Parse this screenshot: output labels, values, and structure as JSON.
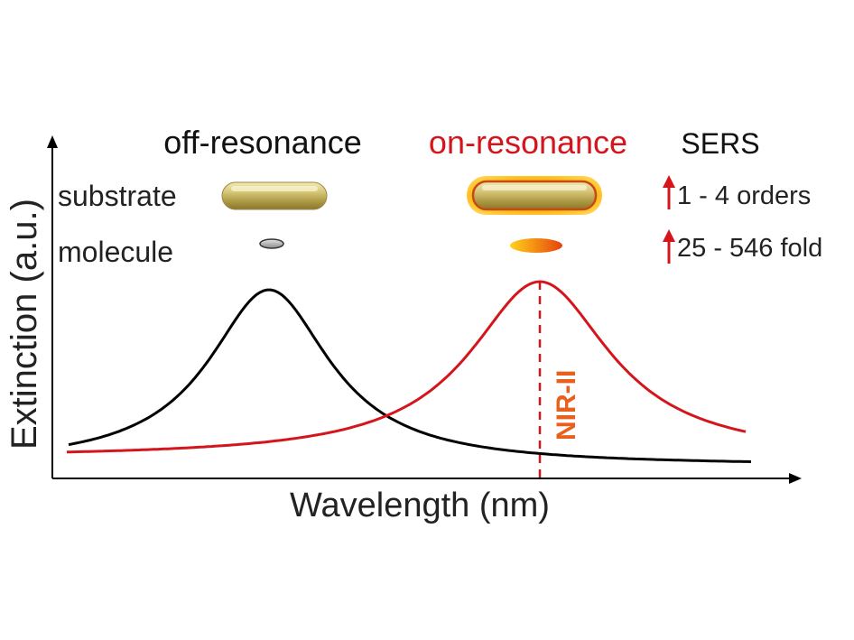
{
  "headers": {
    "off_resonance": "off-resonance",
    "on_resonance": "on-resonance",
    "sers": "SERS"
  },
  "rows": {
    "substrate": "substrate",
    "molecule": "molecule"
  },
  "enhancements": {
    "substrate": "1 - 4 orders",
    "molecule": "25 - 546 fold"
  },
  "axes": {
    "y_label": "Extinction (a.u.)",
    "x_label": "Wavelength (nm)"
  },
  "marker": {
    "label": "NIR-II"
  },
  "colors": {
    "off_resonance": "#000000",
    "on_resonance": "#d4151c",
    "marker": "#e8601c",
    "arrow": "#d4151c",
    "gold": "#c8b45a"
  }
}
